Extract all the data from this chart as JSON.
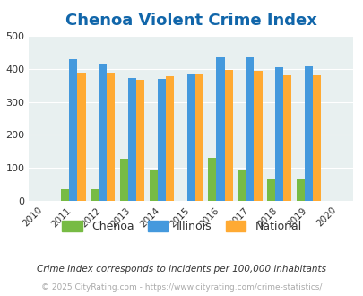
{
  "title": "Chenoa Violent Crime Index",
  "years": [
    2011,
    2012,
    2013,
    2014,
    2015,
    2016,
    2017,
    2018,
    2019
  ],
  "chenoa": [
    37,
    37,
    127,
    93,
    0,
    130,
    95,
    65,
    65
  ],
  "illinois": [
    428,
    414,
    372,
    370,
    383,
    438,
    438,
    405,
    408
  ],
  "national": [
    387,
    387,
    367,
    376,
    383,
    397,
    394,
    379,
    379
  ],
  "chenoa_color": "#77bb44",
  "illinois_color": "#4499dd",
  "national_color": "#ffaa33",
  "bg_color": "#e8f0f0",
  "title_color": "#1166aa",
  "xlim": [
    2009.5,
    2020.5
  ],
  "ylim": [
    0,
    500
  ],
  "yticks": [
    0,
    100,
    200,
    300,
    400,
    500
  ],
  "bar_width": 0.28,
  "subtitle": "Crime Index corresponds to incidents per 100,000 inhabitants",
  "footer": "© 2025 CityRating.com - https://www.cityrating.com/crime-statistics/"
}
